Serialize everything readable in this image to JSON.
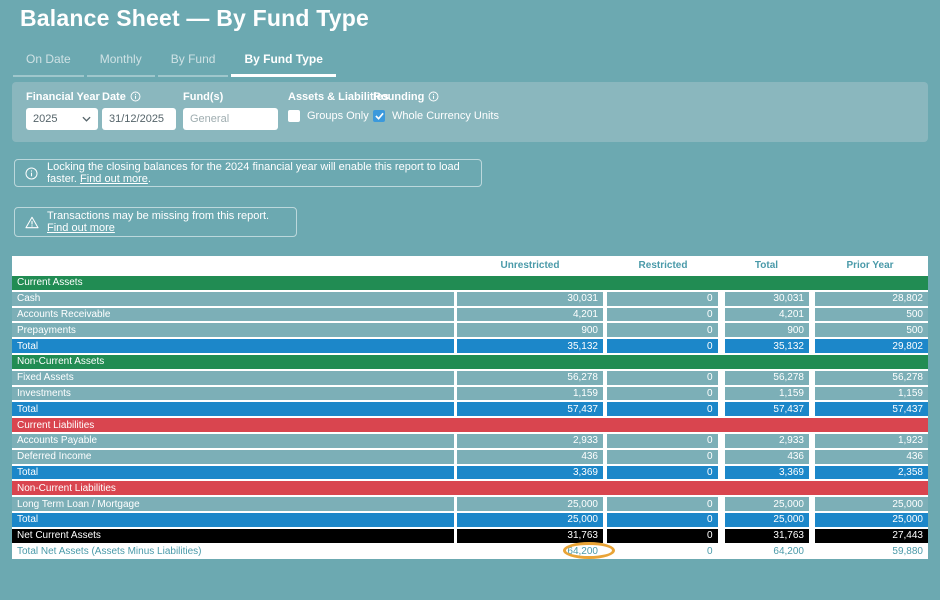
{
  "page": {
    "title": "Balance Sheet — By Fund Type"
  },
  "tabs": [
    {
      "label": "On Date",
      "active": false
    },
    {
      "label": "Monthly",
      "active": false
    },
    {
      "label": "By Fund",
      "active": false
    },
    {
      "label": "By Fund Type",
      "active": true
    }
  ],
  "filters": {
    "financial_year": {
      "label": "Financial Year",
      "value": "2025"
    },
    "date": {
      "label": "Date",
      "value": "31/12/2025",
      "has_info_icon": true
    },
    "funds": {
      "label": "Fund(s)",
      "placeholder": "General"
    },
    "assets_liabilities": {
      "label": "Assets & Liabilities",
      "checkbox": "Groups Only",
      "checked": false
    },
    "rounding": {
      "label": "Rounding",
      "checkbox": "Whole Currency Units",
      "checked": true,
      "has_info_icon": true
    }
  },
  "banners": {
    "info": {
      "text": "Locking the closing balances for the 2024 financial year will enable this report to load faster.",
      "link": "Find out more",
      "suffix": "."
    },
    "warning": {
      "text": "Transactions may be missing from this report.",
      "link": "Find out more"
    }
  },
  "table": {
    "columns": [
      "Unrestricted",
      "Restricted",
      "Total",
      "Prior Year"
    ],
    "rows": [
      {
        "type": "section",
        "color": "green",
        "label": "Current Assets"
      },
      {
        "type": "data",
        "label": "Cash",
        "values": [
          "30,031",
          "0",
          "30,031",
          "28,802"
        ]
      },
      {
        "type": "data",
        "label": "Accounts Receivable",
        "values": [
          "4,201",
          "0",
          "4,201",
          "500"
        ]
      },
      {
        "type": "data",
        "label": "Prepayments",
        "values": [
          "900",
          "0",
          "900",
          "500"
        ]
      },
      {
        "type": "total",
        "label": "Total",
        "values": [
          "35,132",
          "0",
          "35,132",
          "29,802"
        ]
      },
      {
        "type": "section",
        "color": "green",
        "label": "Non-Current Assets"
      },
      {
        "type": "data",
        "label": "Fixed Assets",
        "values": [
          "56,278",
          "0",
          "56,278",
          "56,278"
        ]
      },
      {
        "type": "data",
        "label": "Investments",
        "values": [
          "1,159",
          "0",
          "1,159",
          "1,159"
        ]
      },
      {
        "type": "total",
        "label": "Total",
        "values": [
          "57,437",
          "0",
          "57,437",
          "57,437"
        ]
      },
      {
        "type": "section",
        "color": "red",
        "label": "Current Liabilities"
      },
      {
        "type": "data",
        "label": "Accounts Payable",
        "values": [
          "2,933",
          "0",
          "2,933",
          "1,923"
        ]
      },
      {
        "type": "data",
        "label": "Deferred Income",
        "values": [
          "436",
          "0",
          "436",
          "436"
        ]
      },
      {
        "type": "total",
        "label": "Total",
        "values": [
          "3,369",
          "0",
          "3,369",
          "2,358"
        ]
      },
      {
        "type": "section",
        "color": "red",
        "label": "Non-Current Liabilities"
      },
      {
        "type": "data",
        "label": "Long Term Loan / Mortgage",
        "values": [
          "25,000",
          "0",
          "25,000",
          "25,000"
        ]
      },
      {
        "type": "total",
        "label": "Total",
        "values": [
          "25,000",
          "0",
          "25,000",
          "25,000"
        ]
      },
      {
        "type": "net",
        "label": "Net Current Assets",
        "values": [
          "31,763",
          "0",
          "31,763",
          "27,443"
        ]
      },
      {
        "type": "grand",
        "label": "Total Net Assets (Assets Minus Liabilities)",
        "values": [
          "64,200",
          "0",
          "64,200",
          "59,880"
        ],
        "circled": 0
      }
    ]
  },
  "annotation": {
    "circled_value": "64,200",
    "circle_color": "#e9a437"
  },
  "colors": {
    "bg": "#6ca9b1",
    "filter_bg": "#8ab7be",
    "green": "#218c53",
    "red": "#d9454f",
    "blue": "#1c87c9",
    "row_teal": "#7cafb7",
    "teal_text": "#4a9aa9",
    "annotation": "#e9a437",
    "checkbox_checked": "#3b99dc"
  }
}
